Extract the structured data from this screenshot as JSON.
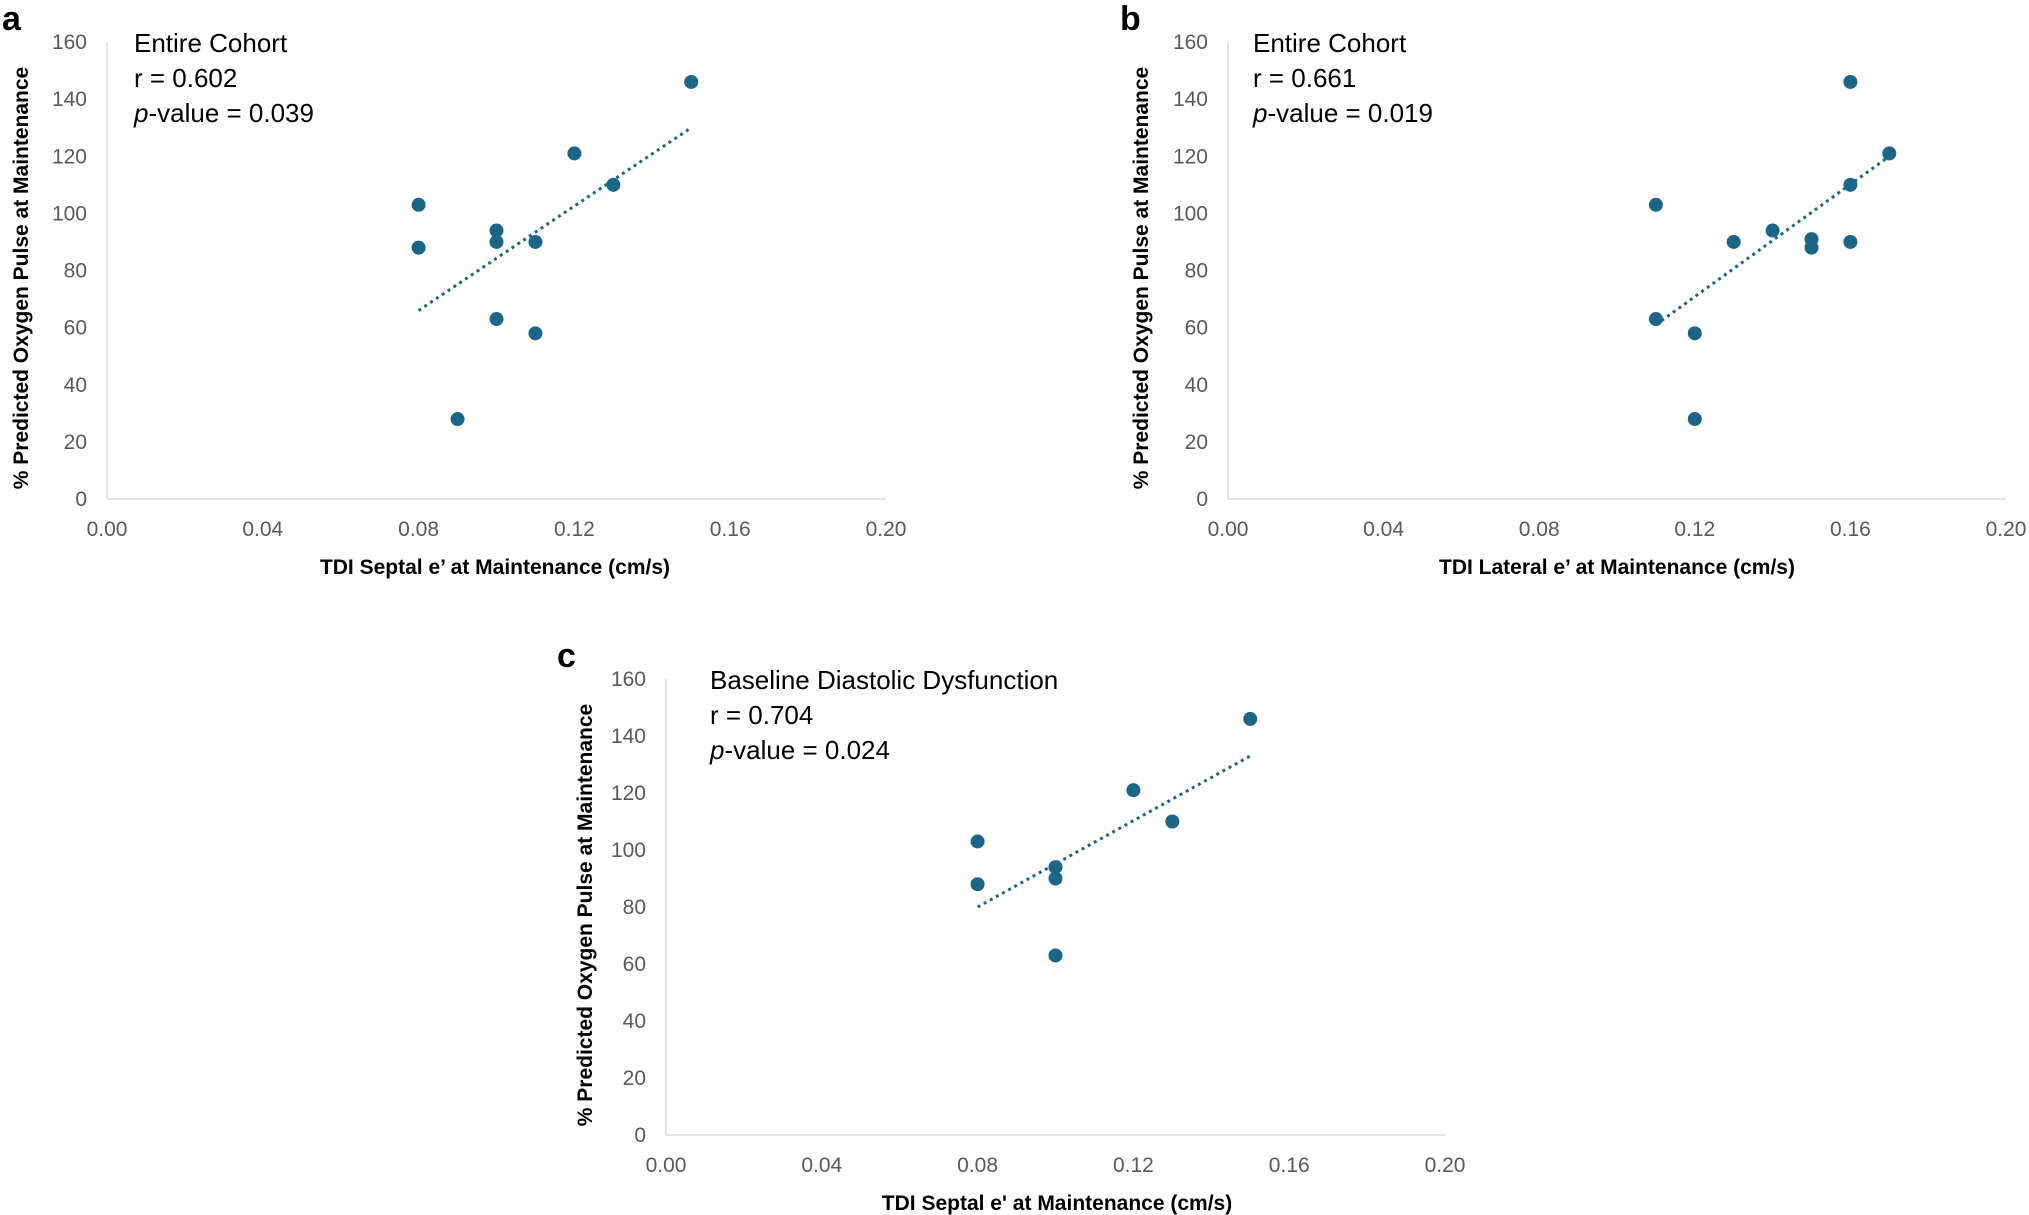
{
  "colors": {
    "marker": "#1b6586",
    "trendline": "#1b6586",
    "axis": "#d9d9d9",
    "tick_text": "#595959"
  },
  "chart_data": [
    {
      "panel": "a",
      "type": "scatter",
      "annotation": {
        "title": "Entire Cohort",
        "r": "r = 0.602",
        "p_prefix": "p",
        "p_rest": "-value = 0.039"
      },
      "xlabel": "TDI Septal e’ at Maintenance (cm/s)",
      "ylabel": "% Predicted Oxygen Pulse at Maintenance",
      "xlim": [
        0,
        0.2
      ],
      "ylim": [
        0,
        160
      ],
      "xticks": [
        "0.00",
        "0.04",
        "0.08",
        "0.12",
        "0.16",
        "0.20"
      ],
      "yticks": [
        "0",
        "20",
        "40",
        "60",
        "80",
        "100",
        "120",
        "140",
        "160"
      ],
      "grid": false,
      "points": [
        {
          "x": 0.08,
          "y": 103
        },
        {
          "x": 0.08,
          "y": 88
        },
        {
          "x": 0.09,
          "y": 28
        },
        {
          "x": 0.1,
          "y": 94
        },
        {
          "x": 0.1,
          "y": 90
        },
        {
          "x": 0.1,
          "y": 63
        },
        {
          "x": 0.11,
          "y": 90
        },
        {
          "x": 0.11,
          "y": 58
        },
        {
          "x": 0.12,
          "y": 121
        },
        {
          "x": 0.13,
          "y": 110
        },
        {
          "x": 0.15,
          "y": 146
        }
      ],
      "trendline": {
        "type": "linear",
        "x": [
          0.08,
          0.15
        ],
        "y": [
          66,
          130
        ]
      }
    },
    {
      "panel": "b",
      "type": "scatter",
      "annotation": {
        "title": "Entire Cohort",
        "r": "r = 0.661",
        "p_prefix": "p",
        "p_rest": "-value = 0.019"
      },
      "xlabel": "TDI Lateral e’ at Maintenance (cm/s)",
      "ylabel": "% Predicted Oxygen Pulse at Maintenance",
      "xlim": [
        0,
        0.2
      ],
      "ylim": [
        0,
        160
      ],
      "xticks": [
        "0.00",
        "0.04",
        "0.08",
        "0.12",
        "0.16",
        "0.20"
      ],
      "yticks": [
        "0",
        "20",
        "40",
        "60",
        "80",
        "100",
        "120",
        "140",
        "160"
      ],
      "grid": false,
      "points": [
        {
          "x": 0.11,
          "y": 103
        },
        {
          "x": 0.11,
          "y": 63
        },
        {
          "x": 0.12,
          "y": 58
        },
        {
          "x": 0.12,
          "y": 28
        },
        {
          "x": 0.13,
          "y": 90
        },
        {
          "x": 0.14,
          "y": 94
        },
        {
          "x": 0.15,
          "y": 91
        },
        {
          "x": 0.15,
          "y": 88
        },
        {
          "x": 0.16,
          "y": 146
        },
        {
          "x": 0.16,
          "y": 110
        },
        {
          "x": 0.16,
          "y": 90
        },
        {
          "x": 0.17,
          "y": 121
        }
      ],
      "trendline": {
        "type": "linear",
        "x": [
          0.11,
          0.17
        ],
        "y": [
          61,
          120
        ]
      }
    },
    {
      "panel": "c",
      "type": "scatter",
      "annotation": {
        "title": "Baseline Diastolic Dysfunction",
        "r": "r = 0.704",
        "p_prefix": "p",
        "p_rest": "-value = 0.024"
      },
      "xlabel": "TDI Septal e' at Maintenance (cm/s)",
      "ylabel": "% Predicted Oxygen Pulse at Maintenance",
      "xlim": [
        0,
        0.2
      ],
      "ylim": [
        0,
        160
      ],
      "xticks": [
        "0.00",
        "0.04",
        "0.08",
        "0.12",
        "0.16",
        "0.20"
      ],
      "yticks": [
        "0",
        "20",
        "40",
        "60",
        "80",
        "100",
        "120",
        "140",
        "160"
      ],
      "grid": false,
      "points": [
        {
          "x": 0.08,
          "y": 103
        },
        {
          "x": 0.08,
          "y": 88
        },
        {
          "x": 0.1,
          "y": 94
        },
        {
          "x": 0.1,
          "y": 90
        },
        {
          "x": 0.1,
          "y": 63
        },
        {
          "x": 0.12,
          "y": 121
        },
        {
          "x": 0.13,
          "y": 110
        },
        {
          "x": 0.15,
          "y": 146
        }
      ],
      "trendline": {
        "type": "linear",
        "x": [
          0.08,
          0.15
        ],
        "y": [
          80,
          133
        ]
      }
    }
  ]
}
